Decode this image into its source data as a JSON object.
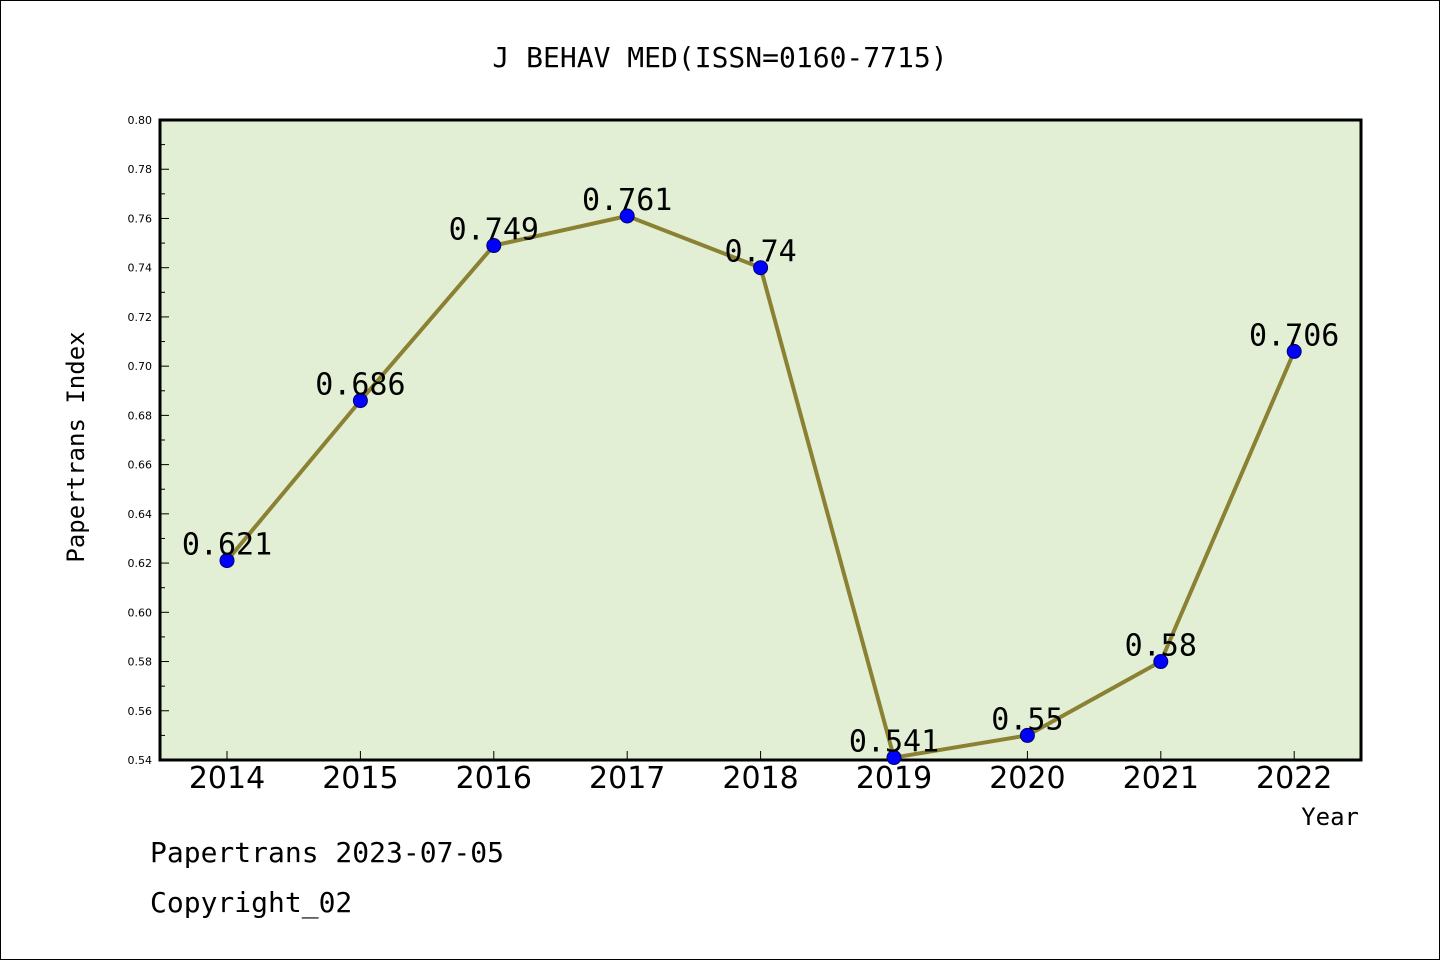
{
  "chart_data": {
    "type": "line",
    "title": "J BEHAV MED(ISSN=0160-7715)",
    "xlabel": "Year",
    "ylabel": "Papertrans Index",
    "categories": [
      "2014",
      "2015",
      "2016",
      "2017",
      "2018",
      "2019",
      "2020",
      "2021",
      "2022"
    ],
    "series": [
      {
        "values": [
          0.621,
          0.686,
          0.749,
          0.761,
          0.74,
          0.541,
          0.55,
          0.58,
          0.706
        ],
        "labels": [
          "0.621",
          "0.686",
          "0.749",
          "0.761",
          "0.74",
          "0.541",
          "0.55",
          "0.58",
          "0.706"
        ],
        "line_color": "#8b8133",
        "marker_color": "#0000ff"
      }
    ],
    "ylim": [
      0.54,
      0.8
    ],
    "yticks": [
      "0.54",
      "0.56",
      "0.58",
      "0.60",
      "0.62",
      "0.64",
      "0.66",
      "0.68",
      "0.70",
      "0.72",
      "0.74",
      "0.76",
      "0.78",
      "0.80"
    ],
    "plot_background": "#e2efd5",
    "grid": false,
    "legend": "none"
  },
  "footer": {
    "line1": "Papertrans 2023-07-05",
    "line2": "Copyright_02"
  }
}
